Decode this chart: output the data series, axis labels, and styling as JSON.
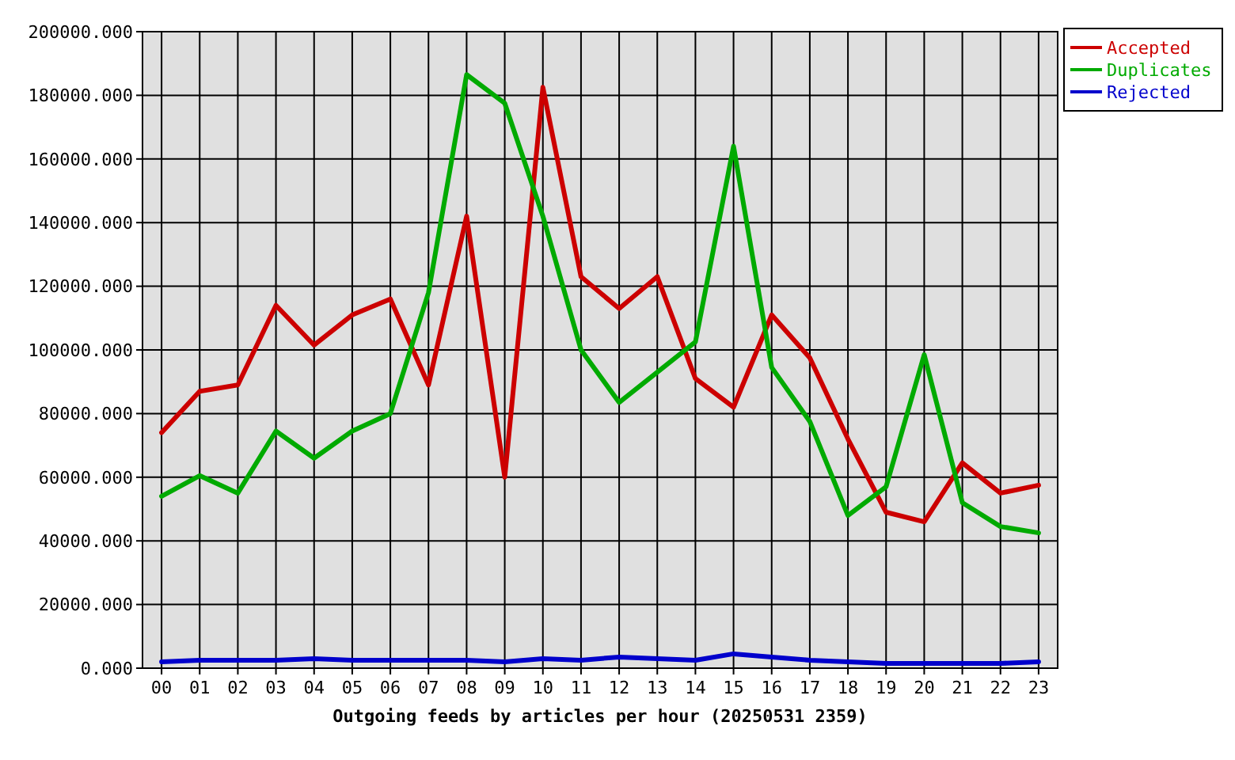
{
  "chart_data": {
    "type": "line",
    "xlabel": "Outgoing feeds by articles per hour (20250531 2359)",
    "categories": [
      "00",
      "01",
      "02",
      "03",
      "04",
      "05",
      "06",
      "07",
      "08",
      "09",
      "10",
      "11",
      "12",
      "13",
      "14",
      "15",
      "16",
      "17",
      "18",
      "19",
      "20",
      "21",
      "22",
      "23"
    ],
    "series": [
      {
        "name": "Accepted",
        "color": "#cc0000",
        "values": [
          74000,
          87000,
          89000,
          114000,
          101500,
          111000,
          116000,
          89000,
          142000,
          60000,
          182500,
          123000,
          113000,
          123000,
          91000,
          82000,
          111000,
          97500,
          72000,
          49000,
          46000,
          64500,
          55000,
          57500
        ]
      },
      {
        "name": "Duplicates",
        "color": "#00aa00",
        "values": [
          54000,
          60500,
          55000,
          74500,
          66000,
          74500,
          80000,
          118000,
          186500,
          177500,
          142000,
          100000,
          83500,
          93000,
          102500,
          164000,
          94500,
          77500,
          48000,
          57000,
          98500,
          52000,
          44500,
          42500
        ]
      },
      {
        "name": "Rejected",
        "color": "#0000cc",
        "values": [
          2000,
          2500,
          2500,
          2500,
          3000,
          2500,
          2500,
          2500,
          2500,
          2000,
          3000,
          2500,
          3500,
          3000,
          2500,
          4500,
          3500,
          2500,
          2000,
          1500,
          1500,
          1500,
          1500,
          2000
        ]
      }
    ],
    "ylim": [
      0,
      200000
    ],
    "yticks": [
      {
        "value": 0,
        "label": "0.000"
      },
      {
        "value": 20000,
        "label": "20000.000"
      },
      {
        "value": 40000,
        "label": "40000.000"
      },
      {
        "value": 60000,
        "label": "60000.000"
      },
      {
        "value": 80000,
        "label": "80000.000"
      },
      {
        "value": 100000,
        "label": "100000.000"
      },
      {
        "value": 120000,
        "label": "120000.000"
      },
      {
        "value": 140000,
        "label": "140000.000"
      },
      {
        "value": 160000,
        "label": "160000.000"
      },
      {
        "value": 180000,
        "label": "180000.000"
      },
      {
        "value": 200000,
        "label": "200000.000"
      }
    ],
    "grid": true,
    "legend": "top right",
    "marker": "none",
    "line_style": "solid"
  }
}
